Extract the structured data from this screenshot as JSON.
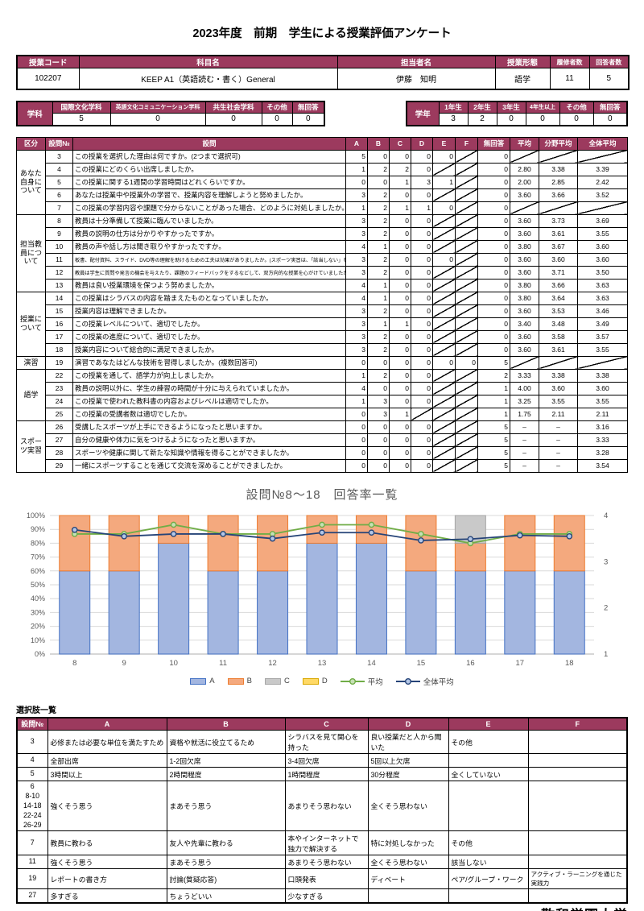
{
  "doc": {
    "title": "2023年度　前期　学生による授業評価アンケート",
    "footer": "敬和学園大学"
  },
  "course": {
    "headers": [
      "授業コード",
      "科目名",
      "担当者名",
      "授業形態",
      "履修者数",
      "回答者数"
    ],
    "values": [
      "102207",
      "KEEP A1（英語読む・書く）General",
      "伊藤　知明",
      "語学",
      "11",
      "5"
    ]
  },
  "dept_table": {
    "label": "学科",
    "columns": [
      "国際文化学科",
      "英語文化コミュニケーション学科",
      "共生社会学科",
      "その他",
      "無回答"
    ],
    "values": [
      "5",
      "0",
      "0",
      "0",
      "0"
    ]
  },
  "year_table": {
    "label": "学年",
    "columns": [
      "1年生",
      "2年生",
      "3年生",
      "4年生以上",
      "その他",
      "無回答"
    ],
    "values": [
      "3",
      "2",
      "0",
      "0",
      "0",
      "0"
    ]
  },
  "survey_table": {
    "headers": [
      "区分",
      "設問№",
      "設問",
      "A",
      "B",
      "C",
      "D",
      "E",
      "F",
      "無回答",
      "平均",
      "分野平均",
      "全体平均"
    ],
    "groups": [
      {
        "label": "あなた自身について",
        "rows": [
          {
            "no": "3",
            "q": "この授業を選択した理由は何ですか。(2つまで選択可)",
            "cells": [
              "5",
              "0",
              "0",
              "0",
              "0",
              "diag"
            ],
            "noans": "0",
            "avg": "diag",
            "field_avg": "diag",
            "overall_avg": "diag"
          },
          {
            "no": "4",
            "q": "この授業にどのくらい出席しましたか。",
            "cells": [
              "1",
              "2",
              "2",
              "0",
              "diag",
              "diag"
            ],
            "noans": "0",
            "avg": "2.80",
            "field_avg": "3.38",
            "overall_avg": "3.39"
          },
          {
            "no": "5",
            "q": "この授業に関する1週間の学習時間はどれくらいですか。",
            "cells": [
              "0",
              "0",
              "1",
              "3",
              "1",
              "diag"
            ],
            "noans": "0",
            "avg": "2.00",
            "field_avg": "2.85",
            "overall_avg": "2.42"
          },
          {
            "no": "6",
            "q": "あなたは授業中や授業外の学習で、授業内容を理解しようと努めましたか。",
            "cells": [
              "3",
              "2",
              "0",
              "0",
              "diag",
              "diag"
            ],
            "noans": "0",
            "avg": "3.60",
            "field_avg": "3.66",
            "overall_avg": "3.52"
          },
          {
            "no": "7",
            "q": "この授業の学習内容や課題で分からないことがあった場合、どのように対処しましたか。",
            "cells": [
              "1",
              "2",
              "1",
              "1",
              "0",
              "diag"
            ],
            "noans": "0",
            "avg": "diag",
            "field_avg": "diag",
            "overall_avg": "diag"
          }
        ]
      },
      {
        "label": "担当教員について",
        "rows": [
          {
            "no": "8",
            "q": "教員は十分準備して授業に臨んでいましたか。",
            "cells": [
              "3",
              "2",
              "0",
              "0",
              "diag",
              "diag"
            ],
            "noans": "0",
            "avg": "3.60",
            "field_avg": "3.73",
            "overall_avg": "3.69"
          },
          {
            "no": "9",
            "q": "教員の説明の仕方は分かりやすかったですか。",
            "cells": [
              "3",
              "2",
              "0",
              "0",
              "diag",
              "diag"
            ],
            "noans": "0",
            "avg": "3.60",
            "field_avg": "3.61",
            "overall_avg": "3.55"
          },
          {
            "no": "10",
            "q": "教員の声や話し方は聞き取りやすかったですか。",
            "cells": [
              "4",
              "1",
              "0",
              "0",
              "diag",
              "diag"
            ],
            "noans": "0",
            "avg": "3.80",
            "field_avg": "3.67",
            "overall_avg": "3.60"
          },
          {
            "no": "11",
            "small": true,
            "q": "板書、配付資料、スライド、DVD等の理解を助けるための工夫は効果がありましたか。(スポーツ実習は、「該当しない」を選んでください)",
            "cells": [
              "3",
              "2",
              "0",
              "0",
              "0",
              "diag"
            ],
            "noans": "0",
            "avg": "3.60",
            "field_avg": "3.60",
            "overall_avg": "3.60"
          },
          {
            "no": "12",
            "small": true,
            "q": "教員は学生に質問や発言の機会を与えたり、課題のフィードバックをするなどして、双方向的な授業を心がけていましたか。",
            "cells": [
              "3",
              "2",
              "0",
              "0",
              "diag",
              "diag"
            ],
            "noans": "0",
            "avg": "3.60",
            "field_avg": "3.71",
            "overall_avg": "3.50"
          },
          {
            "no": "13",
            "q": "教員は良い授業環境を保つよう努めましたか。",
            "cells": [
              "4",
              "1",
              "0",
              "0",
              "diag",
              "diag"
            ],
            "noans": "0",
            "avg": "3.80",
            "field_avg": "3.66",
            "overall_avg": "3.63"
          }
        ]
      },
      {
        "label": "授業について",
        "rows": [
          {
            "no": "14",
            "q": "この授業はシラバスの内容を踏まえたものとなっていましたか。",
            "cells": [
              "4",
              "1",
              "0",
              "0",
              "diag",
              "diag"
            ],
            "noans": "0",
            "avg": "3.80",
            "field_avg": "3.64",
            "overall_avg": "3.63"
          },
          {
            "no": "15",
            "q": "授業内容は理解できましたか。",
            "cells": [
              "3",
              "2",
              "0",
              "0",
              "diag",
              "diag"
            ],
            "noans": "0",
            "avg": "3.60",
            "field_avg": "3.53",
            "overall_avg": "3.46"
          },
          {
            "no": "16",
            "q": "この授業レベルについて、適切でしたか。",
            "cells": [
              "3",
              "1",
              "1",
              "0",
              "diag",
              "diag"
            ],
            "noans": "0",
            "avg": "3.40",
            "field_avg": "3.48",
            "overall_avg": "3.49"
          },
          {
            "no": "17",
            "q": "この授業の進度について、適切でしたか。",
            "cells": [
              "3",
              "2",
              "0",
              "0",
              "diag",
              "diag"
            ],
            "noans": "0",
            "avg": "3.60",
            "field_avg": "3.58",
            "overall_avg": "3.57"
          },
          {
            "no": "18",
            "q": "授業内容について総合的に満足できましたか。",
            "cells": [
              "3",
              "2",
              "0",
              "0",
              "diag",
              "diag"
            ],
            "noans": "0",
            "avg": "3.60",
            "field_avg": "3.61",
            "overall_avg": "3.55"
          }
        ]
      },
      {
        "label": "演習",
        "rows": [
          {
            "no": "19",
            "q": "演習であなたはどんな技術を習得しましたか。(複数回答可)",
            "cells": [
              "0",
              "0",
              "0",
              "0",
              "0",
              "0"
            ],
            "noans": "5",
            "avg": "diag",
            "field_avg": "diag",
            "overall_avg": "diag"
          }
        ]
      },
      {
        "label": "語学",
        "rows": [
          {
            "no": "22",
            "q": "この授業を通して、語学力が向上しましたか。",
            "cells": [
              "1",
              "2",
              "0",
              "0",
              "diag",
              "diag"
            ],
            "noans": "2",
            "avg": "3.33",
            "field_avg": "3.38",
            "overall_avg": "3.38"
          },
          {
            "no": "23",
            "q": "教員の説明以外に、学生の練習の時間が十分に与えられていましたか。",
            "cells": [
              "4",
              "0",
              "0",
              "0",
              "diag",
              "diag"
            ],
            "noans": "1",
            "avg": "4.00",
            "field_avg": "3.60",
            "overall_avg": "3.60"
          },
          {
            "no": "24",
            "q": "この授業で使われた教科書の内容およびレベルは適切でしたか。",
            "cells": [
              "1",
              "3",
              "0",
              "0",
              "diag",
              "diag"
            ],
            "noans": "1",
            "avg": "3.25",
            "field_avg": "3.55",
            "overall_avg": "3.55"
          },
          {
            "no": "25",
            "q": "この授業の受講者数は適切でしたか。",
            "cells": [
              "0",
              "3",
              "1",
              "diag",
              "diag",
              "diag"
            ],
            "noans": "1",
            "avg": "1.75",
            "field_avg": "2.11",
            "overall_avg": "2.11"
          }
        ]
      },
      {
        "label": "スポーツ実習",
        "rows": [
          {
            "no": "26",
            "q": "受講したスポーツが上手にできるようになったと思いますか。",
            "cells": [
              "0",
              "0",
              "0",
              "0",
              "diag",
              "diag"
            ],
            "noans": "5",
            "avg": "–",
            "field_avg": "–",
            "overall_avg": "3.16"
          },
          {
            "no": "27",
            "q": "自分の健康や体力に気をつけるようになったと思いますか。",
            "cells": [
              "0",
              "0",
              "0",
              "0",
              "diag",
              "diag"
            ],
            "noans": "5",
            "avg": "–",
            "field_avg": "–",
            "overall_avg": "3.33"
          },
          {
            "no": "28",
            "q": "スポーツや健康に関して新たな知識や情報を得ることができましたか。",
            "cells": [
              "0",
              "0",
              "0",
              "0",
              "diag",
              "diag"
            ],
            "noans": "5",
            "avg": "–",
            "field_avg": "–",
            "overall_avg": "3.28"
          },
          {
            "no": "29",
            "q": "一緒にスポーツすることを通じて交流を深めることができましたか。",
            "cells": [
              "0",
              "0",
              "0",
              "0",
              "diag",
              "diag"
            ],
            "noans": "5",
            "avg": "–",
            "field_avg": "–",
            "overall_avg": "3.54"
          }
        ]
      }
    ]
  },
  "chart_data": {
    "type": "bar",
    "title": "設問№8～18　回答率一覧",
    "categories": [
      "8",
      "9",
      "10",
      "11",
      "12",
      "13",
      "14",
      "15",
      "16",
      "17",
      "18"
    ],
    "stack_series": [
      {
        "name": "A",
        "color": "#A3B6E0",
        "border": "#4472C4",
        "values": [
          60,
          60,
          80,
          60,
          60,
          80,
          80,
          60,
          60,
          60,
          60
        ]
      },
      {
        "name": "B",
        "color": "#F4A97E",
        "border": "#ED7D31",
        "values": [
          40,
          40,
          20,
          40,
          40,
          20,
          20,
          40,
          20,
          40,
          40
        ]
      },
      {
        "name": "C",
        "color": "#C9C9C9",
        "border": "#A6A6A6",
        "values": [
          0,
          0,
          0,
          0,
          0,
          0,
          0,
          0,
          20,
          0,
          0
        ]
      },
      {
        "name": "D",
        "color": "#FFD966",
        "border": "#D9A800",
        "values": [
          0,
          0,
          0,
          0,
          0,
          0,
          0,
          0,
          0,
          0,
          0
        ]
      }
    ],
    "line_series": [
      {
        "name": "平均",
        "color": "#70AD47",
        "marker_fill": "#C6E0B4",
        "values": [
          3.6,
          3.6,
          3.8,
          3.6,
          3.6,
          3.8,
          3.8,
          3.6,
          3.4,
          3.6,
          3.6
        ]
      },
      {
        "name": "全体平均",
        "color": "#264478",
        "marker_fill": "#B4C7E7",
        "values": [
          3.69,
          3.55,
          3.6,
          3.6,
          3.5,
          3.63,
          3.63,
          3.46,
          3.49,
          3.57,
          3.55
        ]
      }
    ],
    "left_axis": {
      "min": 0,
      "max": 100,
      "step": 10,
      "suffix": "%"
    },
    "right_axis": {
      "ticks": [
        4,
        3,
        2,
        1
      ],
      "min": 1,
      "max": 4
    },
    "legend_position": "bottom",
    "grid": true
  },
  "options_table": {
    "label": "選択肢一覧",
    "headers": [
      "設問№",
      "A",
      "B",
      "C",
      "D",
      "E",
      "F"
    ],
    "rows": [
      {
        "no": "3",
        "cls": "r3",
        "cells": [
          "必修または必要な単位を満たすため",
          "資格や就活に役立てるため",
          "シラバスを見て関心を持った",
          "良い授業だと人から聞いた",
          "その他",
          ""
        ]
      },
      {
        "no": "4",
        "cls": "r4",
        "cells": [
          "全部出席",
          "1-2回欠席",
          "3-4回欠席",
          "5回以上欠席",
          "",
          ""
        ]
      },
      {
        "no": "5",
        "cls": "r5",
        "cells": [
          "3時間以上",
          "2時間程度",
          "1時間程度",
          "30分程度",
          "全くしていない",
          ""
        ]
      },
      {
        "no": "6\n8-10\n14-18\n22-24\n26-29",
        "cls": "tall",
        "cells": [
          "強くそう思う",
          "まあそう思う",
          "あまりそう思わない",
          "全くそう思わない",
          "",
          ""
        ]
      },
      {
        "no": "7",
        "cls": "r7",
        "cells": [
          "教員に教わる",
          "友人や先輩に教わる",
          "本やインターネットで独力で解決する",
          "特に対処しなかった",
          "その他",
          ""
        ]
      },
      {
        "no": "11",
        "cls": "r11",
        "cells": [
          "強くそう思う",
          "まあそう思う",
          "あまりそう思わない",
          "全くそう思わない",
          "該当しない",
          ""
        ]
      },
      {
        "no": "19",
        "cls": "r19",
        "cells": [
          "レポートの書き方",
          "討論(質疑応答)",
          "口頭発表",
          "ディベート",
          "ペア/グループ・ワーク",
          "アクティブ・ラーニングを通じた実践力"
        ]
      },
      {
        "no": "27",
        "cls": "r27",
        "cells": [
          "多すぎる",
          "ちょうどいい",
          "少なすぎる",
          "",
          "",
          ""
        ]
      }
    ]
  }
}
